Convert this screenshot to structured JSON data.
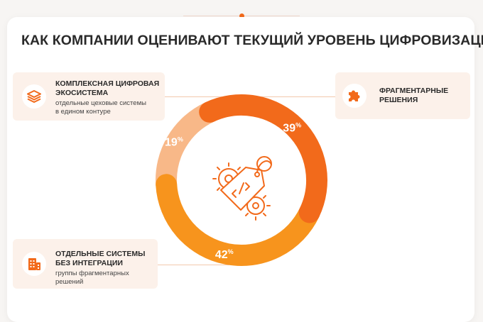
{
  "title": "КАК КОМПАНИИ ОЦЕНИВАЮТ ТЕКУЩИЙ УРОВЕНЬ ЦИФРОВИЗАЦИИ",
  "legend": {
    "complex": {
      "title_line1": "КОМПЛЕКСНАЯ ЦИФРОВАЯ",
      "title_line2": "ЭКОСИСТЕМА",
      "sub_line1": "отдельные цеховые системы",
      "sub_line2": "в едином контуре",
      "icon": "layers-icon"
    },
    "fragment": {
      "title_line1": "ФРАГМЕНТАРНЫЕ",
      "title_line2": "РЕШЕНИЯ",
      "icon": "puzzle-icon"
    },
    "separate": {
      "title_line1": "ОТДЕЛЬНЫЕ СИСТЕМЫ",
      "title_line2": "БЕЗ ИНТЕГРАЦИИ",
      "sub_line1": "группы фрагментарных решений",
      "icon": "building-icon"
    }
  },
  "colors": {
    "fragment": "#f26a1b",
    "separate": "#f7941d",
    "complex": "#f8b888",
    "accent": "#f26a1b"
  },
  "center_icon": "code-tag-gears-icon",
  "chart_data": {
    "type": "pie",
    "donut": true,
    "categories": [
      "ФРАГМЕНТАРНЫЕ РЕШЕНИЯ",
      "ОТДЕЛЬНЫЕ СИСТЕМЫ БЕЗ ИНТЕГРАЦИИ",
      "КОМПЛЕКСНАЯ ЦИФРОВАЯ ЭКОСИСТЕМА"
    ],
    "values": [
      39,
      42,
      19
    ],
    "labels": [
      "39",
      "42",
      "19"
    ],
    "unit": "%",
    "title": "КАК КОМПАНИИ ОЦЕНИВАЮТ ТЕКУЩИЙ УРОВЕНЬ ЦИФРОВИЗАЦИИ"
  }
}
